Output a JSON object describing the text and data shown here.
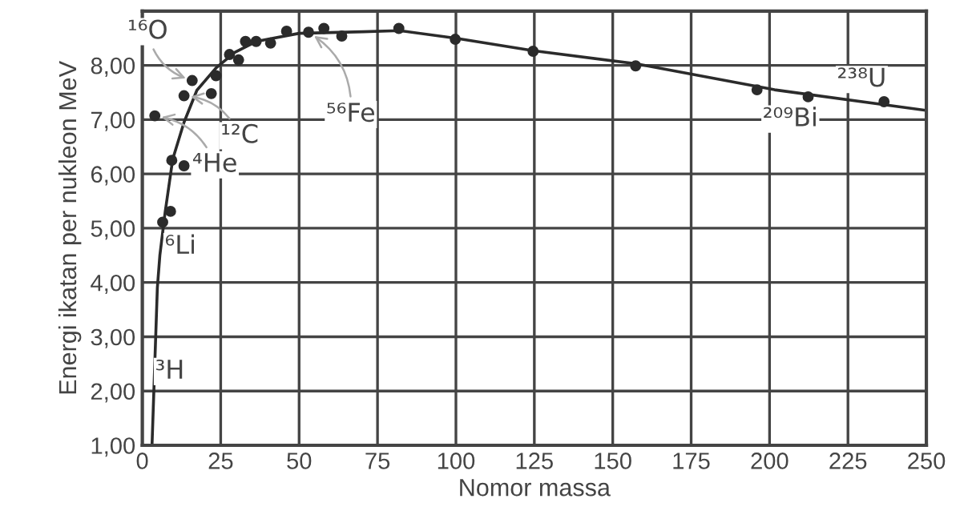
{
  "chart_data": {
    "type": "scatter",
    "xlabel": "Nomor massa",
    "ylabel": "Energi ikatan per nukleon MeV",
    "series": [
      {
        "color": "#2b2b2b",
        "x": [
          4,
          6.5,
          9,
          9.4,
          13.3,
          13.3,
          15.9,
          22,
          23.5,
          27.8,
          30.7,
          32.9,
          36.3,
          40.9,
          46,
          53,
          57.9,
          63.6,
          81.8,
          99.8,
          124.6,
          157.3,
          196,
          212.3,
          236.5
        ],
        "values": [
          7.07,
          5.11,
          5.31,
          6.25,
          6.15,
          7.44,
          7.72,
          7.48,
          7.81,
          8.2,
          8.1,
          8.44,
          8.44,
          8.41,
          8.63,
          8.61,
          8.68,
          8.54,
          8.68,
          8.48,
          8.26,
          7.99,
          7.55,
          7.42,
          7.33
        ]
      },
      {
        "type": "line",
        "color": "#2b2b2b",
        "x": [
          3.1,
          4.8,
          5.6,
          7.3,
          9.7,
          13.3,
          17.4,
          23.5,
          29.5,
          36.3,
          50,
          70.4,
          82,
          100,
          124.6,
          157.3,
          201.6,
          250
        ],
        "values": [
          1,
          3.9,
          4.5,
          5.3,
          6.27,
          6.95,
          7.54,
          7.95,
          8.24,
          8.44,
          8.59,
          8.62,
          8.64,
          8.5,
          8.27,
          8.03,
          7.55,
          7.17
        ]
      }
    ],
    "xlim": [
      0,
      250
    ],
    "xticks": [
      0,
      25,
      50,
      75,
      100,
      125,
      150,
      175,
      200,
      225,
      250
    ],
    "ylim": [
      1,
      9
    ],
    "yticks": [
      {
        "value": 1,
        "label": "1,00"
      },
      {
        "value": 2,
        "label": "2,00"
      },
      {
        "value": 3,
        "label": "3,00"
      },
      {
        "value": 4,
        "label": "4,00"
      },
      {
        "value": 5,
        "label": "5,00"
      },
      {
        "value": 6,
        "label": "6,00"
      },
      {
        "value": 7,
        "label": "7,00"
      },
      {
        "value": 8,
        "label": "8,00"
      },
      {
        "value": 9,
        "label": null
      }
    ],
    "grid": true,
    "annotations": [
      {
        "text": "¹⁶O",
        "x": 15.9,
        "y": 7.72
      },
      {
        "text": "¹²C",
        "x": 13.3,
        "y": 7.44
      },
      {
        "text": "⁴He",
        "x": 4,
        "y": 7.07
      },
      {
        "text": "⁶Li",
        "x": 6.5,
        "y": 5.11
      },
      {
        "text": "³H",
        "x": 3.1,
        "y": 2.36
      },
      {
        "text": "⁵⁶Fe",
        "x": 53,
        "y": 8.61
      },
      {
        "text": "²⁰⁹Bi",
        "x": 212.3,
        "y": 7.42
      },
      {
        "text": "²³⁸U",
        "x": 236.5,
        "y": 7.33
      }
    ]
  }
}
